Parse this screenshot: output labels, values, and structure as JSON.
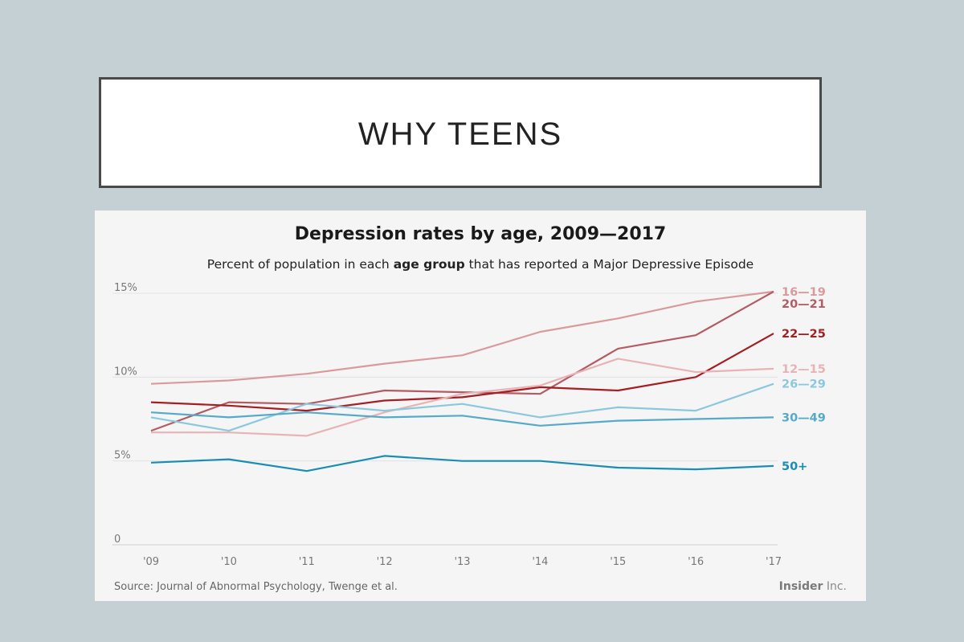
{
  "slide": {
    "title": "WHY TEENS"
  },
  "chart": {
    "title": "Depression rates by age, 2009—2017",
    "subtitle_prefix": "Percent of population in each ",
    "subtitle_bold": "age group",
    "subtitle_suffix": " that has reported a Major Depressive Episode",
    "source": "Source: Journal of Abnormal Psychology, Twenge et al.",
    "brand_bold": "Insider",
    "brand_rest": " Inc."
  },
  "chart_data": {
    "type": "line",
    "title": "Depression rates by age, 2009—2017",
    "subtitle": "Percent of population in each age group that has reported a Major Depressive Episode",
    "x": [
      "'09",
      "'10",
      "'11",
      "'12",
      "'13",
      "'14",
      "'15",
      "'16",
      "'17"
    ],
    "y_ticks": [
      {
        "value": 0,
        "label": "0"
      },
      {
        "value": 5,
        "label": "5%"
      },
      {
        "value": 10,
        "label": "10%"
      },
      {
        "value": 15,
        "label": "15%"
      }
    ],
    "ylim": [
      0,
      15
    ],
    "grid": true,
    "legend": "right-end labels",
    "series": [
      {
        "name": "16—19",
        "color": "#d99a9c",
        "width": 2.2,
        "values": [
          9.6,
          9.8,
          10.2,
          10.8,
          11.3,
          12.7,
          13.5,
          14.5,
          15.1
        ]
      },
      {
        "name": "20—21",
        "color": "#b45c63",
        "width": 2.2,
        "values": [
          6.8,
          8.5,
          8.4,
          9.2,
          9.1,
          9.0,
          11.7,
          12.5,
          15.1
        ]
      },
      {
        "name": "22—25",
        "color": "#a31f24",
        "width": 2.2,
        "values": [
          8.5,
          8.3,
          8.0,
          8.6,
          8.8,
          9.4,
          9.2,
          10.0,
          12.6
        ]
      },
      {
        "name": "12—15",
        "color": "#e8b3b5",
        "width": 2.2,
        "values": [
          6.7,
          6.7,
          6.5,
          7.9,
          9.0,
          9.5,
          11.1,
          10.3,
          10.5
        ]
      },
      {
        "name": "26—29",
        "color": "#8cc8dc",
        "width": 2.2,
        "values": [
          7.6,
          6.8,
          8.4,
          8.0,
          8.4,
          7.6,
          8.2,
          8.0,
          9.6
        ]
      },
      {
        "name": "30—49",
        "color": "#55aac8",
        "width": 2.2,
        "values": [
          7.9,
          7.6,
          7.9,
          7.6,
          7.7,
          7.1,
          7.4,
          7.5,
          7.6
        ]
      },
      {
        "name": "50+",
        "color": "#1a8db3",
        "width": 2.2,
        "values": [
          4.9,
          5.1,
          4.4,
          5.3,
          5.0,
          5.0,
          4.6,
          4.5,
          4.7
        ]
      }
    ]
  }
}
